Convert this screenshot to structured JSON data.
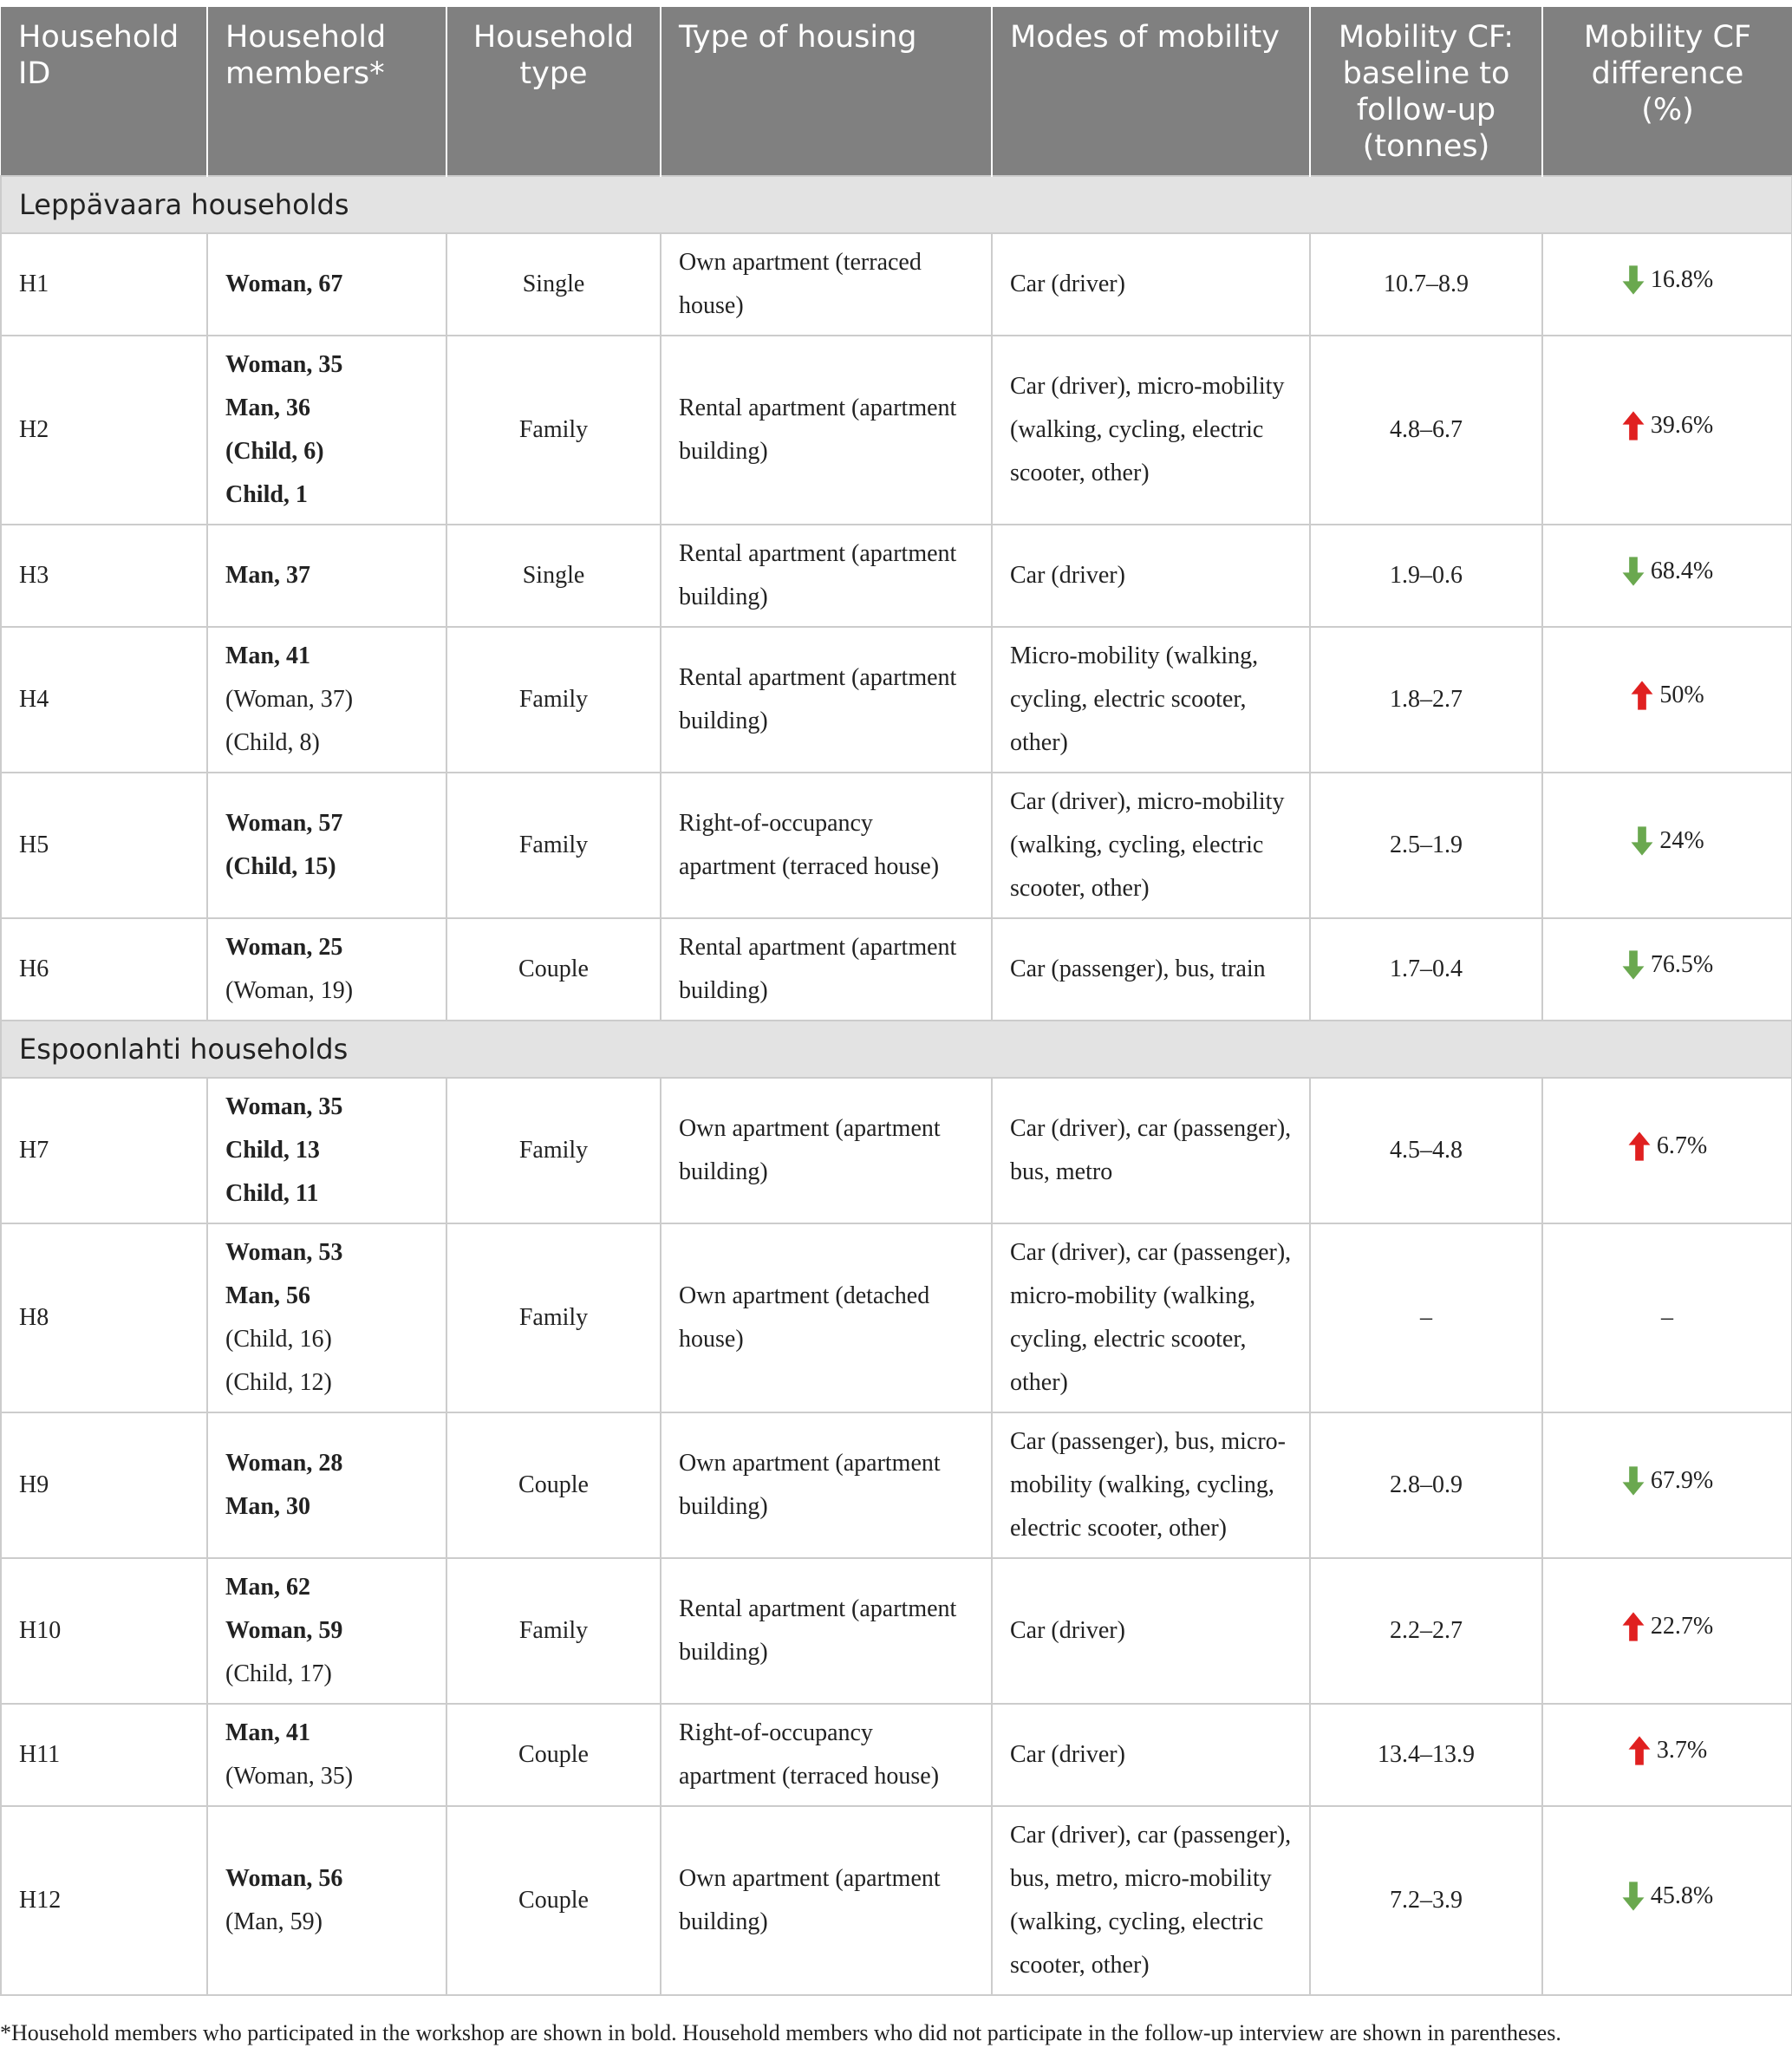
{
  "table": {
    "headers": [
      "Household ID",
      "Household members*",
      "Household type",
      "Type of housing",
      "Modes of mobility",
      "Mobility CF: baseline to follow-up (tonnes)",
      "Mobility CF difference (%)"
    ],
    "sections": [
      {
        "title": "Leppävaara households",
        "rows": [
          {
            "id": "H1",
            "members": [
              {
                "text": "Woman, 67",
                "bold": true
              }
            ],
            "type": "Single",
            "housing": "Own apartment (terraced house)",
            "modes": "Car (driver)",
            "cf": "10.7–8.9",
            "diff": "16.8%",
            "direction": "down"
          },
          {
            "id": "H2",
            "members": [
              {
                "text": "Woman, 35",
                "bold": true
              },
              {
                "text": "Man, 36",
                "bold": true
              },
              {
                "text": "(Child, 6)",
                "bold": true
              },
              {
                "text": "Child, 1",
                "bold": true
              }
            ],
            "type": "Family",
            "housing": "Rental apartment (apartment building)",
            "modes": "Car (driver), micro-mobility (walking, cycling, electric scooter, other)",
            "cf": "4.8–6.7",
            "diff": "39.6%",
            "direction": "up"
          },
          {
            "id": "H3",
            "members": [
              {
                "text": "Man, 37",
                "bold": true
              }
            ],
            "type": "Single",
            "housing": "Rental apartment (apartment building)",
            "modes": "Car (driver)",
            "cf": "1.9–0.6",
            "diff": "68.4%",
            "direction": "down"
          },
          {
            "id": "H4",
            "members": [
              {
                "text": "Man, 41",
                "bold": true
              },
              {
                "text": "(Woman, 37)",
                "bold": false
              },
              {
                "text": "(Child, 8)",
                "bold": false
              }
            ],
            "type": "Family",
            "housing": "Rental apartment (apartment building)",
            "modes": "Micro-mobility (walking, cycling, electric scooter, other)",
            "cf": "1.8–2.7",
            "diff": "50%",
            "direction": "up"
          },
          {
            "id": "H5",
            "members": [
              {
                "text": "Woman, 57",
                "bold": true
              },
              {
                "text": "(Child, 15)",
                "bold": true
              }
            ],
            "type": "Family",
            "housing": "Right-of-occupancy apartment (terraced house)",
            "modes": "Car (driver), micro-mobility (walking, cycling, electric scooter, other)",
            "cf": "2.5–1.9",
            "diff": "24%",
            "direction": "down"
          },
          {
            "id": "H6",
            "members": [
              {
                "text": "Woman, 25",
                "bold": true
              },
              {
                "text": "(Woman, 19)",
                "bold": false
              }
            ],
            "type": "Couple",
            "housing": "Rental apartment (apartment building)",
            "modes": "Car (passenger), bus, train",
            "cf": "1.7–0.4",
            "diff": "76.5%",
            "direction": "down"
          }
        ]
      },
      {
        "title": "Espoonlahti households",
        "rows": [
          {
            "id": "H7",
            "members": [
              {
                "text": "Woman, 35",
                "bold": true
              },
              {
                "text": "Child, 13",
                "bold": true
              },
              {
                "text": "Child, 11",
                "bold": true
              }
            ],
            "type": "Family",
            "housing": "Own apartment (apartment building)",
            "modes": "Car (driver), car (passenger), bus, metro",
            "cf": "4.5–4.8",
            "diff": "6.7%",
            "direction": "up"
          },
          {
            "id": "H8",
            "members": [
              {
                "text": "Woman, 53",
                "bold": true
              },
              {
                "text": "Man, 56",
                "bold": true
              },
              {
                "text": "(Child, 16)",
                "bold": false
              },
              {
                "text": "(Child, 12)",
                "bold": false
              }
            ],
            "type": "Family",
            "housing": "Own apartment (detached house)",
            "modes": "Car (driver), car (passenger), micro-mobility (walking, cycling, electric scooter, other)",
            "cf": "–",
            "diff": "–",
            "direction": "none"
          },
          {
            "id": "H9",
            "members": [
              {
                "text": "Woman, 28",
                "bold": true
              },
              {
                "text": "Man, 30",
                "bold": true
              }
            ],
            "type": "Couple",
            "housing": "Own apartment (apartment building)",
            "modes": "Car (passenger), bus, micro-mobility (walking, cycling, electric scooter, other)",
            "cf": "2.8–0.9",
            "diff": "67.9%",
            "direction": "down"
          },
          {
            "id": "H10",
            "members": [
              {
                "text": "Man, 62",
                "bold": true
              },
              {
                "text": "Woman, 59",
                "bold": true
              },
              {
                "text": "(Child, 17)",
                "bold": false
              }
            ],
            "type": "Family",
            "housing": "Rental apartment (apartment building)",
            "modes": "Car (driver)",
            "cf": "2.2–2.7",
            "diff": "22.7%",
            "direction": "up"
          },
          {
            "id": "H11",
            "members": [
              {
                "text": "Man, 41",
                "bold": true
              },
              {
                "text": "(Woman, 35)",
                "bold": false
              }
            ],
            "type": "Couple",
            "housing": "Right-of-occupancy apartment (terraced house)",
            "modes": "Car (driver)",
            "cf": "13.4–13.9",
            "diff": "3.7%",
            "direction": "up"
          },
          {
            "id": "H12",
            "members": [
              {
                "text": "Woman, 56",
                "bold": true
              },
              {
                "text": "(Man, 59)",
                "bold": false
              }
            ],
            "type": "Couple",
            "housing": "Own apartment (apartment building)",
            "modes": "Car (driver), car (passenger), bus, metro, micro-mobility (walking, cycling, electric scooter, other)",
            "cf": "7.2–3.9",
            "diff": "45.8%",
            "direction": "down"
          }
        ]
      }
    ]
  },
  "colors": {
    "header_bg": "#808080",
    "section_bg": "#e3e3e3",
    "arrow_down": "#6aa84f",
    "arrow_up": "#e02020"
  },
  "footnote": "*Household members who participated in the workshop are shown in bold. Household members who did not participate in the follow-up interview are shown in parentheses."
}
